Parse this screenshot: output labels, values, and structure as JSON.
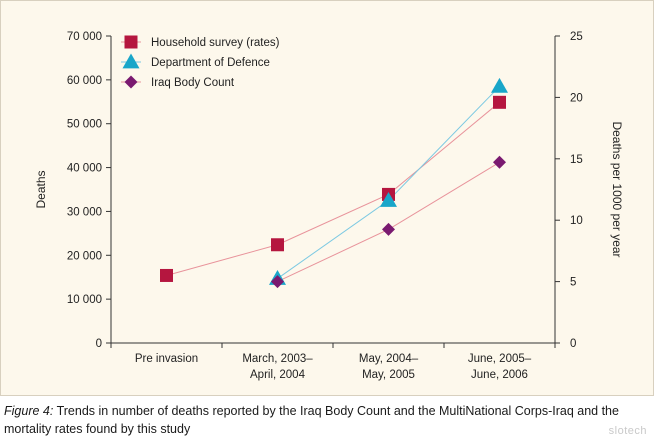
{
  "chart_data": {
    "type": "line",
    "categories": [
      "Pre invasion",
      "March,  2003–\nApril, 2004",
      "May, 2004–\nMay, 2005",
      "June, 2005–\nJune, 2006"
    ],
    "ylabel": "Deaths",
    "y2label": "Deaths per 1000 per year",
    "ylim": [
      0,
      70000
    ],
    "y2lim": [
      0,
      25
    ],
    "yticks": [
      0,
      10000,
      20000,
      30000,
      40000,
      50000,
      60000,
      70000
    ],
    "yticklabels": [
      "0",
      "10 000",
      "20 000",
      "30 000",
      "40 000",
      "50 000",
      "60 000",
      "70 000"
    ],
    "y2ticks": [
      0,
      5,
      10,
      15,
      20,
      25
    ],
    "y2ticklabels": [
      "0",
      "5",
      "10",
      "15",
      "20",
      "25"
    ],
    "legend_position": "top-left",
    "grid": false,
    "series": [
      {
        "name": "Household survey (rates)",
        "axis": "right",
        "marker": "square",
        "color": "#b5163f",
        "line_color": "#e8939b",
        "values": [
          5.5,
          8.0,
          12.1,
          19.6
        ]
      },
      {
        "name": "Department of Defence",
        "axis": "left",
        "marker": "triangle",
        "color": "#19a6c9",
        "line_color": "#7cc9e2",
        "values": [
          null,
          14700,
          32500,
          58500
        ]
      },
      {
        "name": "Iraq Body Count",
        "axis": "left",
        "marker": "diamond",
        "color": "#7a1a70",
        "line_color": "#e8939b",
        "values": [
          null,
          14000,
          25900,
          41200
        ]
      }
    ]
  },
  "caption": {
    "label": "Figure 4:",
    "text": " Trends in number of deaths reported by the Iraq Body Count and the MultiNational Corps-Iraq and the mortality rates found by this study"
  },
  "watermark": "slotech"
}
